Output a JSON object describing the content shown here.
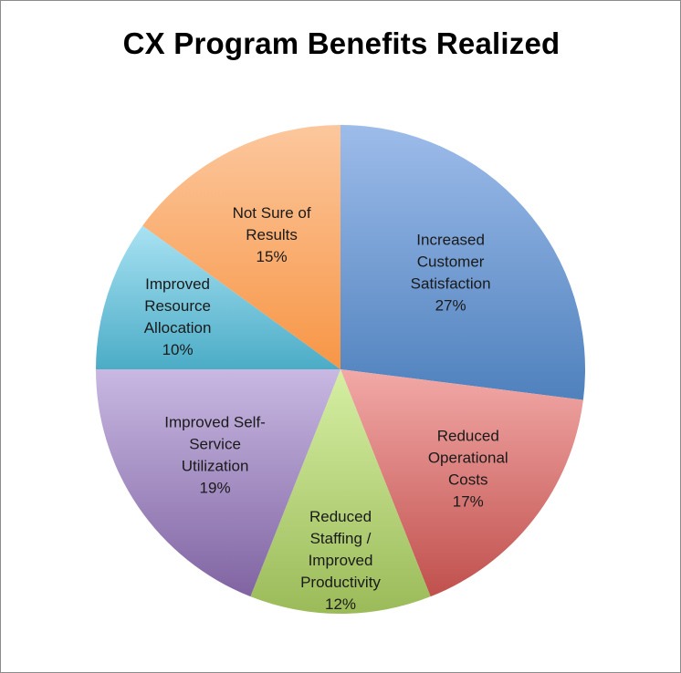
{
  "chart_data": {
    "type": "pie",
    "title": "CX Program Benefits Realized",
    "slices": [
      {
        "label_lines": [
          "Increased",
          "Customer",
          "Satisfaction"
        ],
        "pct_label": "27%",
        "value": 27,
        "color": "#4f81bd",
        "light": "#9dbcea"
      },
      {
        "label_lines": [
          "Reduced",
          "Operational",
          "Costs"
        ],
        "pct_label": "17%",
        "value": 17,
        "color": "#c0504d",
        "light": "#f2a9a7"
      },
      {
        "label_lines": [
          "Reduced",
          "Staffing /",
          "Improved",
          "Productivity"
        ],
        "pct_label": "12%",
        "value": 12,
        "color": "#9bbb59",
        "light": "#d6efa4"
      },
      {
        "label_lines": [
          "Improved Self-",
          "Service",
          "Utilization"
        ],
        "pct_label": "19%",
        "value": 19,
        "color": "#8064a2",
        "light": "#c8b8e2"
      },
      {
        "label_lines": [
          "Improved",
          "Resource",
          "Allocation"
        ],
        "pct_label": "10%",
        "value": 10,
        "color": "#4bacc6",
        "light": "#a9e2f3"
      },
      {
        "label_lines": [
          "Not Sure of",
          "Results"
        ],
        "pct_label": "15%",
        "value": 15,
        "color": "#f79646",
        "light": "#fcc79d"
      }
    ],
    "legend": "none"
  }
}
